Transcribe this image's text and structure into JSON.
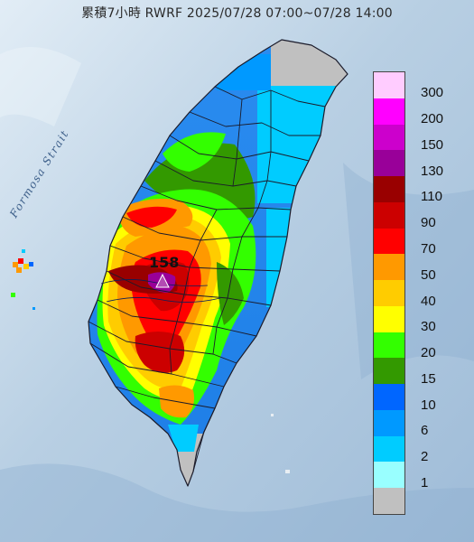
{
  "title": "累積7小時 RWRF 2025/07/28 07:00~07/28 14:00",
  "strait_label": "Formosa Strait",
  "max_value": "158",
  "legend": {
    "items": [
      {
        "label": "300",
        "color": "#ffccff"
      },
      {
        "label": "200",
        "color": "#ff00ff"
      },
      {
        "label": "150",
        "color": "#cc00cc"
      },
      {
        "label": "130",
        "color": "#990099"
      },
      {
        "label": "110",
        "color": "#990000"
      },
      {
        "label": "90",
        "color": "#cc0000"
      },
      {
        "label": "70",
        "color": "#ff0000"
      },
      {
        "label": "50",
        "color": "#ff9900"
      },
      {
        "label": "40",
        "color": "#ffcc00"
      },
      {
        "label": "30",
        "color": "#ffff00"
      },
      {
        "label": "20",
        "color": "#33ff00"
      },
      {
        "label": "15",
        "color": "#339900"
      },
      {
        "label": "10",
        "color": "#0066ff"
      },
      {
        "label": "6",
        "color": "#0099ff"
      },
      {
        "label": "2",
        "color": "#00ccff"
      },
      {
        "label": "1",
        "color": "#99ffff"
      },
      {
        "label": "",
        "color": "#c0c0c0"
      }
    ]
  }
}
